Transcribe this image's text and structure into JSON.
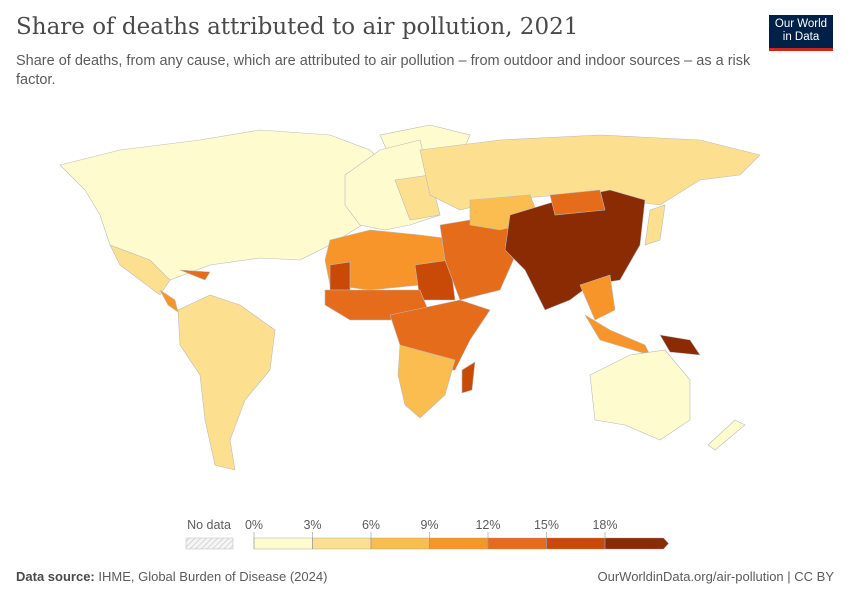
{
  "header": {
    "title": "Share of deaths attributed to air pollution, 2021",
    "subtitle": "Share of deaths, from any cause, which are attributed to air pollution – from outdoor and indoor sources – as a risk factor.",
    "logo_line1": "Our World",
    "logo_line2": "in Data"
  },
  "legend": {
    "no_data_label": "No data",
    "ticks": [
      "0%",
      "3%",
      "6%",
      "9%",
      "12%",
      "15%",
      "18%"
    ],
    "colors": [
      "#fefccf",
      "#fde08f",
      "#fbbd4f",
      "#f7952a",
      "#e46c1a",
      "#c94907",
      "#8a2b04"
    ],
    "no_data_color": "#eeeeee"
  },
  "footer": {
    "source_label": "Data source:",
    "source": "IHME, Global Burden of Disease (2024)",
    "link": "OurWorldinData.org/air-pollution | CC BY"
  }
}
